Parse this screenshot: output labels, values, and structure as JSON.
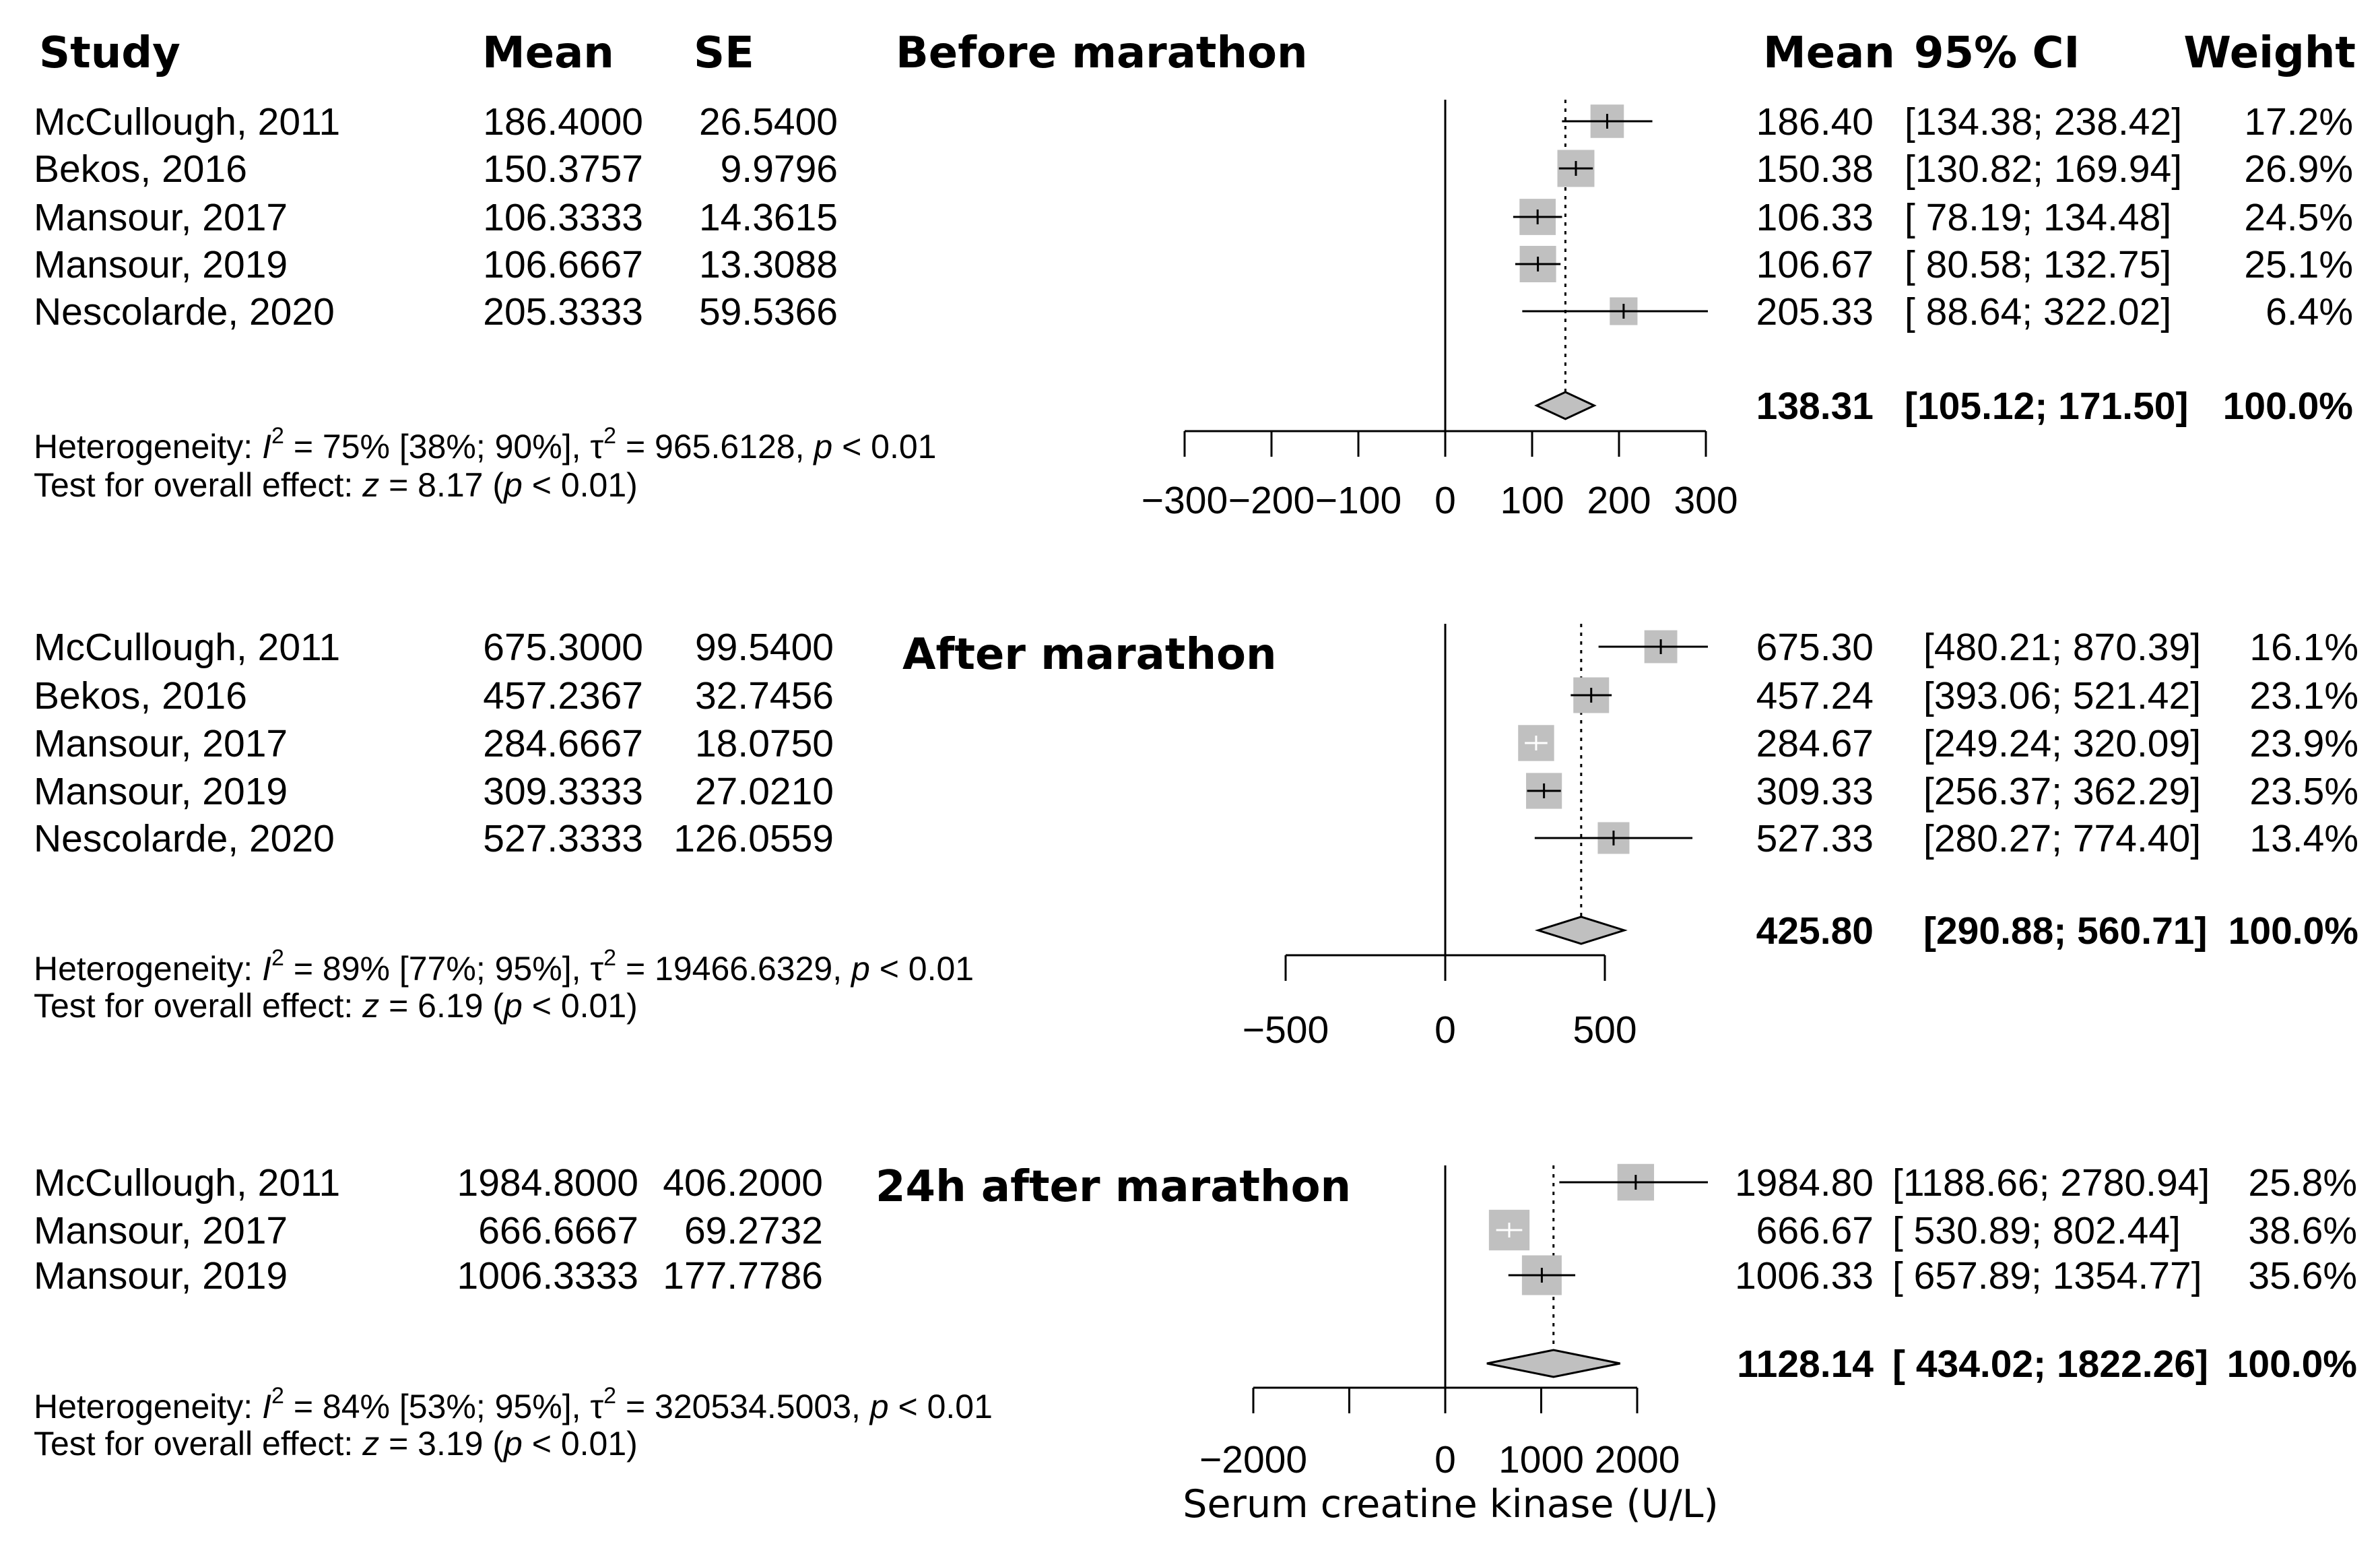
{
  "headers": {
    "study": "Study",
    "mean": "Mean",
    "se": "SE",
    "mean_right": "Mean",
    "ci": "95% CI",
    "weight": "Weight"
  },
  "x_axis_label": "Serum creatine kinase (U/L)",
  "chart_data": [
    {
      "type": "forest",
      "title": "Before marathon",
      "xlim": [
        -300,
        300
      ],
      "ticks": [
        -300,
        -200,
        -100,
        0,
        100,
        200,
        300
      ],
      "tick_labels": [
        "−300",
        "−200",
        "−100",
        "0",
        "100",
        "200",
        "300"
      ],
      "labeled_ticks": [
        -300,
        -200,
        -100,
        0,
        100,
        200,
        300
      ],
      "studies": [
        {
          "study": "McCullough, 2011",
          "mean": "186.4000",
          "se": "26.5400",
          "est": 186.4,
          "lo": 134.38,
          "hi": 238.42,
          "est_txt": "186.40",
          "ci_txt": "[134.38; 238.42]",
          "weight_txt": "17.2%",
          "weight": 17.2
        },
        {
          "study": "Bekos, 2016",
          "mean": "150.3757",
          "se": "9.9796",
          "est": 150.38,
          "lo": 130.82,
          "hi": 169.94,
          "est_txt": "150.38",
          "ci_txt": "[130.82; 169.94]",
          "weight_txt": "26.9%",
          "weight": 26.9
        },
        {
          "study": "Mansour, 2017",
          "mean": "106.3333",
          "se": "14.3615",
          "est": 106.33,
          "lo": 78.19,
          "hi": 134.48,
          "est_txt": "106.33",
          "ci_txt": "[ 78.19; 134.48]",
          "weight_txt": "24.5%",
          "weight": 24.5
        },
        {
          "study": "Mansour, 2019",
          "mean": "106.6667",
          "se": "13.3088",
          "est": 106.67,
          "lo": 80.58,
          "hi": 132.75,
          "est_txt": "106.67",
          "ci_txt": "[ 80.58; 132.75]",
          "weight_txt": "25.1%",
          "weight": 25.1
        },
        {
          "study": "Nescolarde, 2020",
          "mean": "205.3333",
          "se": "59.5366",
          "est": 205.33,
          "lo": 88.64,
          "hi": 322.02,
          "est_txt": "205.33",
          "ci_txt": "[ 88.64; 322.02]",
          "weight_txt": "6.4%",
          "weight": 6.4
        }
      ],
      "pooled": {
        "est": 138.31,
        "lo": 105.12,
        "hi": 171.5,
        "est_txt": "138.31",
        "ci_txt": "[105.12; 171.50]",
        "weight_txt": "100.0%"
      },
      "heterogeneity": {
        "prefix": "Heterogeneity: ",
        "i_sym": "I",
        "sup1": "2",
        "mid": " = 75% [38%; 90%], ",
        "tau": "τ",
        "sup2": "2",
        "tail": " = 965.6128, ",
        "p": "p",
        "end": " < 0.01"
      },
      "overall": {
        "prefix": "Test for overall effect: ",
        "z": "z",
        "mid": " = 8.17 (",
        "p": "p",
        "end": " < 0.01)"
      }
    },
    {
      "type": "forest",
      "title": "After marathon",
      "xlim": [
        -500,
        500
      ],
      "ticks": [
        -500,
        0,
        500
      ],
      "tick_labels": [
        "−500",
        "0",
        "500"
      ],
      "labeled_ticks": [
        -500,
        0,
        500
      ],
      "studies": [
        {
          "study": "McCullough, 2011",
          "mean": "675.3000",
          "se": "99.5400",
          "est": 675.3,
          "lo": 480.21,
          "hi": 870.39,
          "est_txt": "675.30",
          "ci_txt": "[480.21; 870.39]",
          "weight_txt": "16.1%",
          "weight": 16.1
        },
        {
          "study": "Bekos, 2016",
          "mean": "457.2367",
          "se": "32.7456",
          "est": 457.24,
          "lo": 393.06,
          "hi": 521.42,
          "est_txt": "457.24",
          "ci_txt": "[393.06; 521.42]",
          "weight_txt": "23.1%",
          "weight": 23.1
        },
        {
          "study": "Mansour, 2017",
          "mean": "284.6667",
          "se": "18.0750",
          "est": 284.67,
          "lo": 249.24,
          "hi": 320.09,
          "est_txt": "284.67",
          "ci_txt": "[249.24; 320.09]",
          "weight_txt": "23.9%",
          "weight": 23.9
        },
        {
          "study": "Mansour, 2019",
          "mean": "309.3333",
          "se": "27.0210",
          "est": 309.33,
          "lo": 256.37,
          "hi": 362.29,
          "est_txt": "309.33",
          "ci_txt": "[256.37; 362.29]",
          "weight_txt": "23.5%",
          "weight": 23.5
        },
        {
          "study": "Nescolarde, 2020",
          "mean": "527.3333",
          "se": "126.0559",
          "est": 527.33,
          "lo": 280.27,
          "hi": 774.4,
          "est_txt": "527.33",
          "ci_txt": "[280.27; 774.40]",
          "weight_txt": "13.4%",
          "weight": 13.4
        }
      ],
      "pooled": {
        "est": 425.8,
        "lo": 290.88,
        "hi": 560.71,
        "est_txt": "425.80",
        "ci_txt": "[290.88; 560.71]",
        "weight_txt": "100.0%"
      },
      "heterogeneity": {
        "prefix": "Heterogeneity: ",
        "i_sym": "I",
        "sup1": "2",
        "mid": " = 89% [77%; 95%], ",
        "tau": "τ",
        "sup2": "2",
        "tail": " = 19466.6329, ",
        "p": "p",
        "end": " < 0.01"
      },
      "overall": {
        "prefix": "Test for overall effect: ",
        "z": "z",
        "mid": " = 6.19 (",
        "p": "p",
        "end": " < 0.01)"
      }
    },
    {
      "type": "forest",
      "title": "24h after marathon",
      "xlim": [
        -2000,
        2000
      ],
      "ticks": [
        -2000,
        -1000,
        0,
        1000,
        2000
      ],
      "tick_labels": [
        "−2000",
        "0",
        "1000",
        "2000"
      ],
      "labeled_ticks": [
        -2000,
        0,
        1000,
        2000
      ],
      "studies": [
        {
          "study": "McCullough, 2011",
          "mean": "1984.8000",
          "se": "406.2000",
          "est": 1984.8,
          "lo": 1188.66,
          "hi": 2780.94,
          "est_txt": "1984.80",
          "ci_txt": "[1188.66; 2780.94]",
          "weight_txt": "25.8%",
          "weight": 25.8
        },
        {
          "study": "Mansour, 2017",
          "mean": "666.6667",
          "se": "69.2732",
          "est": 666.67,
          "lo": 530.89,
          "hi": 802.44,
          "est_txt": "666.67",
          "ci_txt": "[ 530.89; 802.44]",
          "weight_txt": "38.6%",
          "weight": 38.6
        },
        {
          "study": "Mansour, 2019",
          "mean": "1006.3333",
          "se": "177.7786",
          "est": 1006.33,
          "lo": 657.89,
          "hi": 1354.77,
          "est_txt": "1006.33",
          "ci_txt": "[ 657.89; 1354.77]",
          "weight_txt": "35.6%",
          "weight": 35.6
        }
      ],
      "pooled": {
        "est": 1128.14,
        "lo": 434.02,
        "hi": 1822.26,
        "est_txt": "1128.14",
        "ci_txt": "[ 434.02; 1822.26]",
        "weight_txt": "100.0%"
      },
      "heterogeneity": {
        "prefix": "Heterogeneity: ",
        "i_sym": "I",
        "sup1": "2",
        "mid": " = 84% [53%; 95%], ",
        "tau": "τ",
        "sup2": "2",
        "tail": " = 320534.5003, ",
        "p": "p",
        "end": " < 0.01"
      },
      "overall": {
        "prefix": "Test for overall effect: ",
        "z": "z",
        "mid": " = 3.19 (",
        "p": "p",
        "end": " < 0.01)"
      }
    }
  ]
}
